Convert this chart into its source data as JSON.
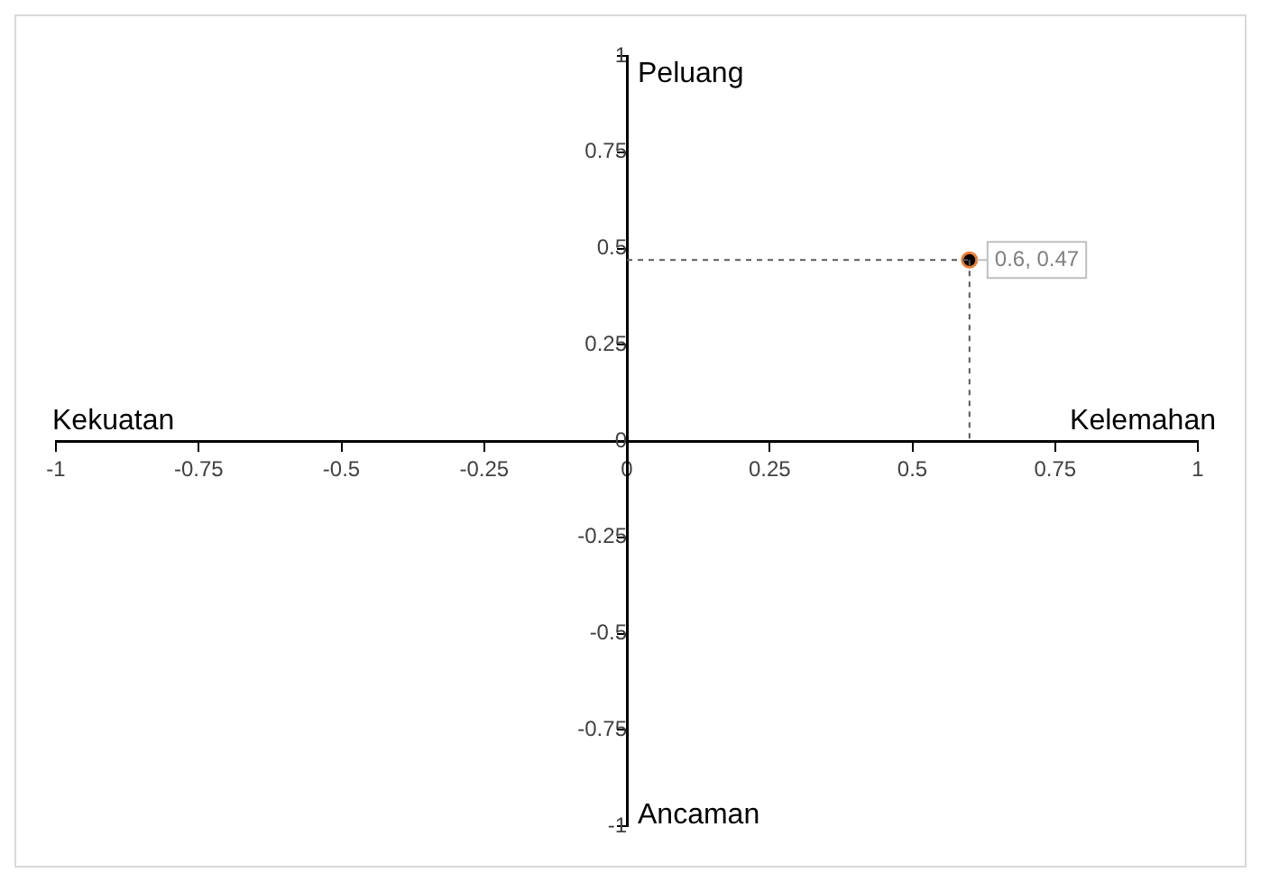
{
  "chart_data": {
    "type": "scatter",
    "x": [
      0.6
    ],
    "values": [
      0.47
    ],
    "color": "#000000",
    "value_labels": [
      "0.6, 0.47"
    ],
    "xlim": [
      -1,
      1
    ],
    "xticks": [
      -1,
      -0.75,
      -0.5,
      -0.25,
      0,
      0.25,
      0.5,
      0.75,
      1
    ],
    "ylim": [
      -1,
      1
    ],
    "yticks": [
      -1,
      -0.75,
      -0.5,
      -0.25,
      0,
      0.25,
      0.5,
      0.75,
      1
    ],
    "grid": false,
    "legend": false,
    "marker": "circle",
    "annotations": [
      "Peluang",
      "Kekuatan",
      "Kelemahan",
      "Ancaman"
    ]
  }
}
